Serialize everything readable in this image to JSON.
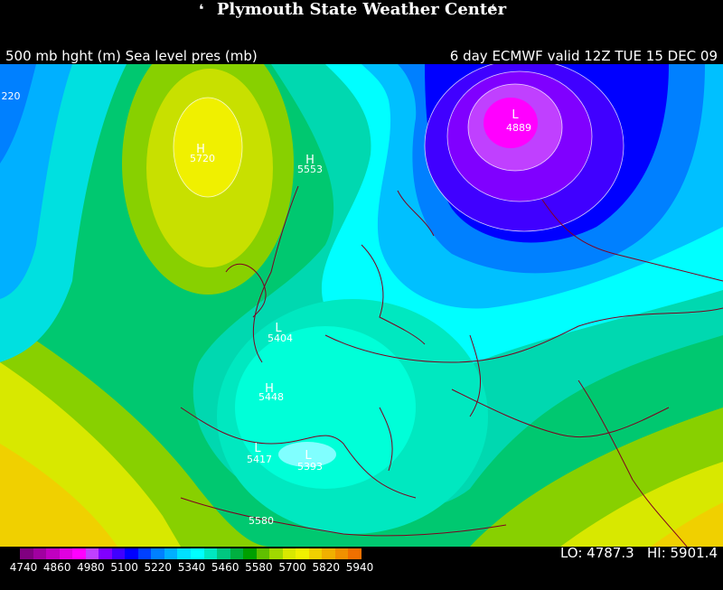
{
  "header": {
    "title": "Plymouth State Weather Center",
    "left_subtitle": "500 mb hght (m) Sea level pres (mb)",
    "right_subtitle": "6 day ECMWF valid 12Z TUE 15 DEC 09"
  },
  "colorbar": {
    "labels": [
      "4740",
      "4860",
      "4980",
      "5100",
      "5220",
      "5340",
      "5460",
      "5580",
      "5700",
      "5820",
      "5940"
    ],
    "colors": [
      "#800080",
      "#a000a0",
      "#c000c0",
      "#e000e0",
      "#ff00ff",
      "#c040ff",
      "#8000ff",
      "#4000ff",
      "#0000ff",
      "#0040ff",
      "#0080ff",
      "#00b0ff",
      "#00e0ff",
      "#00ffff",
      "#00e8c0",
      "#00c880",
      "#00b040",
      "#00a000",
      "#60c000",
      "#a0d800",
      "#d8e800",
      "#f0f000",
      "#f0d000",
      "#f0b000",
      "#f09000",
      "#f07000"
    ]
  },
  "stats": {
    "lo_label": "LO: 4787.3",
    "hi_label": "HI: 5901.4"
  },
  "map": {
    "labels": {
      "l_220": "220",
      "h1_letter": "H",
      "h1_value": "5720",
      "h2_letter": "H",
      "h2_value": "5553",
      "l1_letter": "L",
      "l1_value": "4889",
      "l2_letter": "L",
      "l2_value": "5404",
      "h3_letter": "H",
      "h3_value": "5448",
      "l3_letter": "L",
      "l3_value": "5417",
      "l4_letter": "L",
      "l4_value": "5393",
      "c_5580": "5580"
    }
  }
}
